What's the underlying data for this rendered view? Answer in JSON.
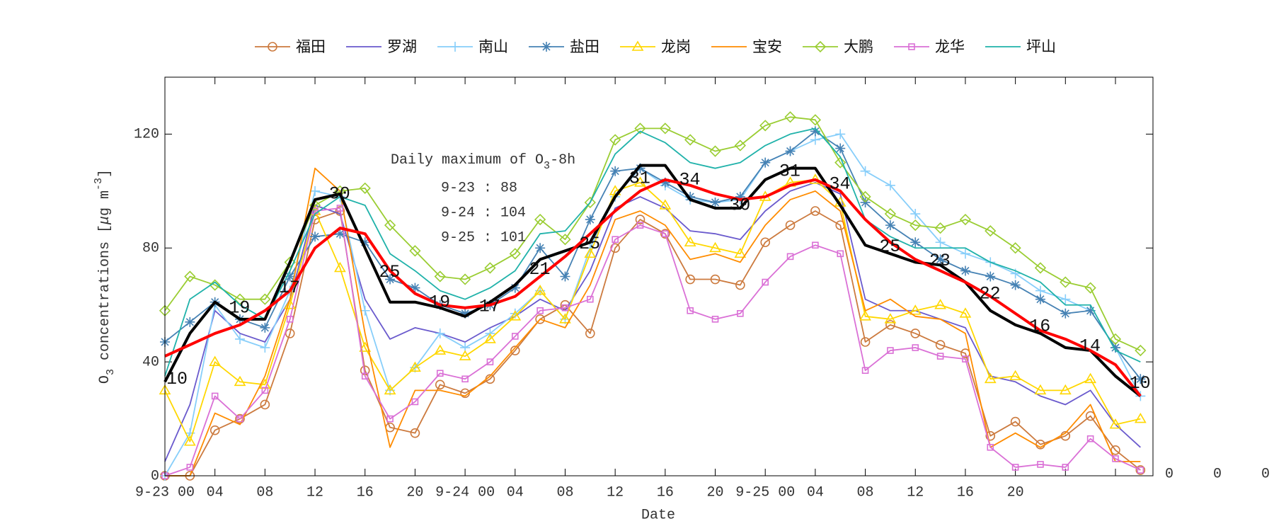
{
  "chart_data": {
    "type": "line",
    "xlabel": "Date",
    "ylabel": [
      "O",
      "3",
      " concentrations [",
      "μ",
      "g m",
      "-3",
      "]"
    ],
    "x": [
      0,
      2,
      4,
      6,
      8,
      10,
      12,
      14,
      16,
      18,
      20,
      22,
      24,
      26,
      28,
      30,
      32,
      34,
      36,
      38,
      40,
      42,
      44,
      46,
      48,
      50,
      52,
      54,
      56,
      58,
      60,
      62,
      64,
      66,
      68,
      70,
      72,
      74,
      76,
      78
    ],
    "xlim": [
      0,
      79
    ],
    "xticks": [
      {
        "value": 0,
        "label": "9-23 00"
      },
      {
        "value": 4,
        "label": "04"
      },
      {
        "value": 8,
        "label": "08"
      },
      {
        "value": 12,
        "label": "12"
      },
      {
        "value": 16,
        "label": "16"
      },
      {
        "value": 20,
        "label": "20"
      },
      {
        "value": 24,
        "label": "9-24 00"
      },
      {
        "value": 28,
        "label": "04"
      },
      {
        "value": 32,
        "label": "08"
      },
      {
        "value": 36,
        "label": "12"
      },
      {
        "value": 40,
        "label": "16"
      },
      {
        "value": 44,
        "label": "20"
      },
      {
        "value": 48,
        "label": "9-25 00"
      },
      {
        "value": 52,
        "label": "04"
      },
      {
        "value": 56,
        "label": "08"
      },
      {
        "value": 60,
        "label": "12"
      },
      {
        "value": 64,
        "label": "16"
      },
      {
        "value": 68,
        "label": "20"
      },
      {
        "value": 72,
        "label": null
      },
      {
        "value": 76,
        "label": null
      }
    ],
    "ylim": [
      0,
      140
    ],
    "yticks": [
      0,
      40,
      80,
      120
    ],
    "series": [
      {
        "name": "福田",
        "color": "#cc7a3e",
        "marker": "circle",
        "values": [
          0,
          0,
          16,
          20,
          25,
          50,
          90,
          93,
          37,
          17,
          15,
          32,
          29,
          34,
          44,
          55,
          60,
          50,
          80,
          90,
          85,
          69,
          69,
          67,
          82,
          88,
          93,
          88,
          47,
          53,
          50,
          46,
          43,
          14,
          19,
          11,
          14,
          21,
          9,
          2
        ]
      },
      {
        "name": "罗湖",
        "color": "#6a5acd",
        "marker": "none",
        "values": [
          5,
          25,
          58,
          50,
          47,
          62,
          95,
          92,
          62,
          48,
          52,
          50,
          47,
          52,
          56,
          62,
          58,
          72,
          94,
          98,
          94,
          86,
          85,
          83,
          93,
          100,
          103,
          99,
          62,
          58,
          58,
          55,
          52,
          35,
          33,
          28,
          25,
          30,
          18,
          10
        ]
      },
      {
        "name": "南山",
        "color": "#87cefa",
        "marker": "plus",
        "values": [
          0,
          15,
          60,
          48,
          45,
          65,
          100,
          98,
          58,
          30,
          38,
          50,
          45,
          50,
          57,
          65,
          55,
          80,
          98,
          108,
          102,
          97,
          96,
          97,
          110,
          114,
          118,
          120,
          107,
          102,
          92,
          82,
          78,
          75,
          71,
          65,
          62,
          58,
          45,
          28
        ]
      },
      {
        "name": "盐田",
        "color": "#4682b4",
        "marker": "star",
        "values": [
          47,
          54,
          61,
          55,
          52,
          70,
          84,
          85,
          82,
          69,
          66,
          60,
          57,
          60,
          66,
          80,
          70,
          90,
          107,
          108,
          103,
          98,
          96,
          98,
          110,
          114,
          121,
          115,
          96,
          88,
          82,
          76,
          72,
          70,
          67,
          62,
          57,
          58,
          45,
          34
        ]
      },
      {
        "name": "龙岗",
        "color": "#ffd700",
        "marker": "triangle",
        "values": [
          30,
          12,
          40,
          33,
          32,
          60,
          93,
          73,
          45,
          30,
          38,
          44,
          42,
          48,
          56,
          65,
          55,
          78,
          100,
          103,
          95,
          82,
          80,
          78,
          98,
          103,
          104,
          96,
          56,
          55,
          58,
          60,
          57,
          34,
          35,
          30,
          30,
          34,
          18,
          20
        ]
      },
      {
        "name": "宝安",
        "color": "#ff8c00",
        "marker": "none",
        "values": [
          0,
          0,
          22,
          18,
          35,
          62,
          108,
          100,
          50,
          10,
          30,
          30,
          28,
          35,
          45,
          55,
          52,
          67,
          90,
          93,
          88,
          76,
          78,
          75,
          88,
          97,
          100,
          93,
          58,
          62,
          56,
          55,
          50,
          10,
          15,
          10,
          15,
          25,
          5,
          5
        ]
      },
      {
        "name": "大鹏",
        "color": "#9acd32",
        "marker": "diamond",
        "values": [
          58,
          70,
          67,
          62,
          62,
          75,
          95,
          100,
          101,
          88,
          79,
          70,
          69,
          73,
          78,
          90,
          83,
          96,
          118,
          122,
          122,
          118,
          114,
          116,
          123,
          126,
          125,
          110,
          98,
          92,
          88,
          87,
          90,
          86,
          80,
          73,
          68,
          66,
          48,
          44
        ]
      },
      {
        "name": "龙华",
        "color": "#da70d6",
        "marker": "square",
        "values": [
          0,
          3,
          28,
          20,
          30,
          55,
          93,
          94,
          35,
          20,
          26,
          36,
          34,
          40,
          49,
          58,
          59,
          62,
          83,
          88,
          85,
          58,
          55,
          57,
          68,
          77,
          81,
          78,
          37,
          44,
          45,
          42,
          41,
          10,
          3,
          4,
          3,
          13,
          6,
          2
        ]
      },
      {
        "name": "坪山",
        "color": "#20b2aa",
        "marker": "none",
        "values": [
          35,
          62,
          68,
          60,
          55,
          72,
          92,
          98,
          95,
          78,
          72,
          65,
          62,
          66,
          72,
          85,
          86,
          96,
          113,
          121,
          117,
          110,
          108,
          110,
          116,
          120,
          122,
          112,
          90,
          84,
          80,
          80,
          80,
          75,
          72,
          68,
          60,
          60,
          44,
          40
        ]
      },
      {
        "color": "#000000",
        "marker": "none",
        "width": 4,
        "values": [
          33,
          50,
          61,
          55,
          55,
          75,
          97,
          99,
          80,
          61,
          61,
          59,
          56,
          61,
          67,
          76,
          79,
          82,
          98,
          109,
          109,
          97,
          94,
          94,
          104,
          108,
          108,
          95,
          81,
          78,
          75,
          74,
          68,
          58,
          53,
          50,
          45,
          44,
          35,
          28
        ]
      },
      {
        "color": "#ff0000",
        "marker": "none",
        "width": 4,
        "values": [
          42,
          46,
          50,
          53,
          58,
          65,
          80,
          87,
          85,
          72,
          64,
          60,
          59,
          60,
          63,
          70,
          77,
          85,
          93,
          100,
          104,
          102,
          99,
          97,
          98,
          102,
          104,
          100,
          90,
          82,
          76,
          72,
          68,
          63,
          57,
          51,
          48,
          44,
          39,
          28
        ]
      }
    ],
    "point_labels": {
      "x": [
        0,
        5,
        9,
        13,
        17,
        21,
        25,
        29,
        33,
        37,
        41,
        45,
        49,
        53,
        57,
        61,
        65,
        69,
        73,
        77
      ],
      "values": [
        10,
        19,
        17,
        30,
        25,
        19,
        17,
        21,
        25,
        31,
        34,
        30,
        31,
        34,
        25,
        23,
        22,
        16,
        14,
        10
      ]
    },
    "annotation": {
      "title": [
        "Daily maximum of O",
        "3",
        "-8h"
      ],
      "lines": [
        "9-23 : 88",
        "9-24 : 104",
        "9-25 : 101"
      ]
    },
    "overflow_labels": [
      0,
      0,
      0
    ]
  }
}
